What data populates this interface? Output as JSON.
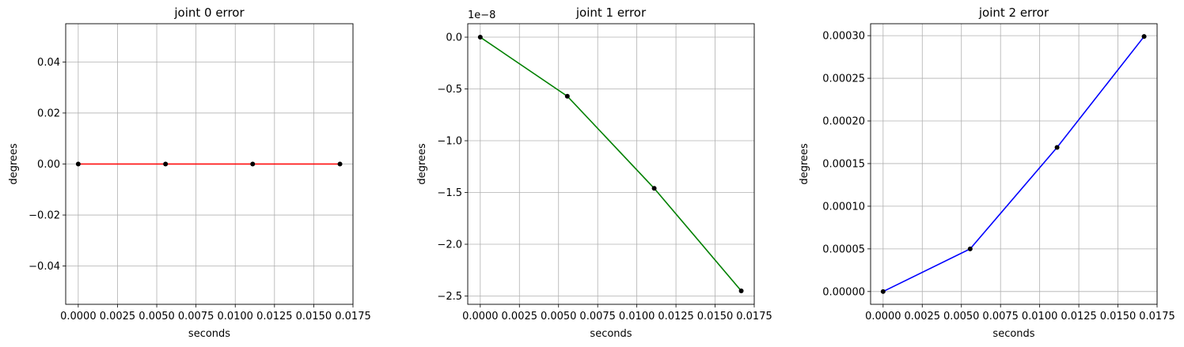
{
  "chart_data": [
    {
      "type": "line",
      "title": "joint 0 error",
      "xlabel": "seconds",
      "ylabel": "degrees",
      "offset_text": "",
      "color": "#ff0000",
      "marker_color": "#000000",
      "grid": true,
      "x": [
        0.0,
        0.00556,
        0.01111,
        0.01667
      ],
      "y": [
        0.0,
        0.0,
        0.0,
        0.0
      ],
      "xlim": [
        -0.0008,
        0.0175
      ],
      "ylim": [
        -0.055,
        0.055
      ],
      "xticks": [
        0.0,
        0.0025,
        0.005,
        0.0075,
        0.01,
        0.0125,
        0.015,
        0.0175
      ],
      "xtick_labels": [
        "0.0000",
        "0.0025",
        "0.0050",
        "0.0075",
        "0.0100",
        "0.0125",
        "0.0150",
        "0.0175"
      ],
      "yticks": [
        0.04,
        0.02,
        0.0,
        -0.02,
        -0.04
      ],
      "ytick_labels": [
        "0.04",
        "0.02",
        "0.00",
        "−0.02",
        "−0.04"
      ]
    },
    {
      "type": "line",
      "title": "joint 1 error",
      "xlabel": "seconds",
      "ylabel": "degrees",
      "offset_text": "1e−8",
      "color": "#008000",
      "marker_color": "#000000",
      "grid": true,
      "x": [
        0.0,
        0.00556,
        0.01111,
        0.01667
      ],
      "y": [
        0.0,
        -0.57,
        -1.46,
        -2.45
      ],
      "xlim": [
        -0.0008,
        0.0175
      ],
      "ylim": [
        -2.58,
        0.13
      ],
      "xticks": [
        0.0,
        0.0025,
        0.005,
        0.0075,
        0.01,
        0.0125,
        0.015,
        0.0175
      ],
      "xtick_labels": [
        "0.0000",
        "0.0025",
        "0.0050",
        "0.0075",
        "0.0100",
        "0.0125",
        "0.0150",
        "0.0175"
      ],
      "yticks": [
        0.0,
        -0.5,
        -1.0,
        -1.5,
        -2.0,
        -2.5
      ],
      "ytick_labels": [
        "0.0",
        "−0.5",
        "−1.0",
        "−1.5",
        "−2.0",
        "−2.5"
      ]
    },
    {
      "type": "line",
      "title": "joint 2 error",
      "xlabel": "seconds",
      "ylabel": "degrees",
      "offset_text": "",
      "color": "#0000ff",
      "marker_color": "#000000",
      "grid": true,
      "x": [
        0.0,
        0.00556,
        0.01111,
        0.01667
      ],
      "y": [
        0.0,
        5e-05,
        0.000169,
        0.000299
      ],
      "xlim": [
        -0.0008,
        0.0175
      ],
      "ylim": [
        -1.5e-05,
        0.000314
      ],
      "xticks": [
        0.0,
        0.0025,
        0.005,
        0.0075,
        0.01,
        0.0125,
        0.015,
        0.0175
      ],
      "xtick_labels": [
        "0.0000",
        "0.0025",
        "0.0050",
        "0.0075",
        "0.0100",
        "0.0125",
        "0.0150",
        "0.0175"
      ],
      "yticks": [
        0.0003,
        0.00025,
        0.0002,
        0.00015,
        0.0001,
        5e-05,
        0.0
      ],
      "ytick_labels": [
        "0.00030",
        "0.00025",
        "0.00020",
        "0.00015",
        "0.00010",
        "0.00005",
        "0.00000"
      ]
    }
  ]
}
